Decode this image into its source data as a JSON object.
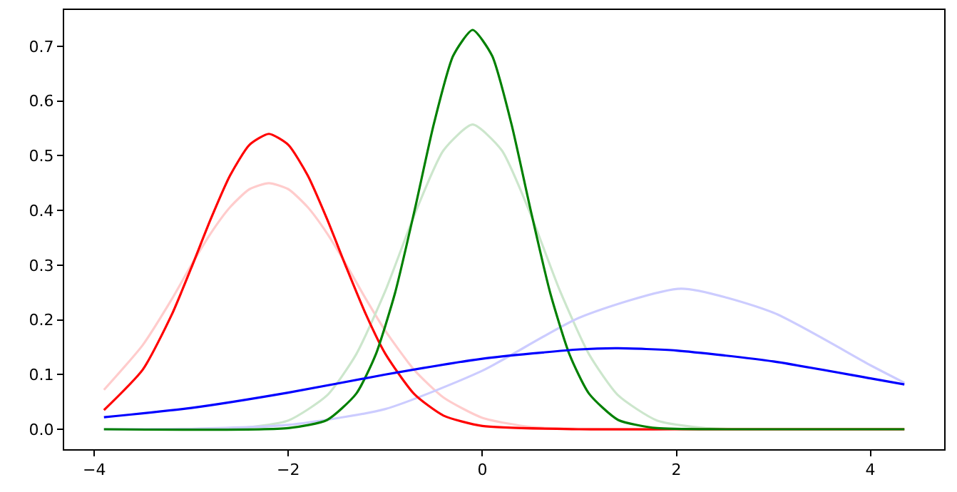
{
  "chart_data": {
    "type": "line",
    "xlim": [
      -4.31,
      4.76
    ],
    "ylim": [
      -0.0365,
      0.7665
    ],
    "xticks": [
      {
        "value": -4,
        "label": "−4"
      },
      {
        "value": -2,
        "label": "−2"
      },
      0,
      2,
      4
    ],
    "yticks": [
      {
        "value": 0,
        "label": "0.0"
      },
      {
        "value": 0.1,
        "label": "0.1"
      },
      {
        "value": 0.2,
        "label": "0.2"
      },
      {
        "value": 0.3,
        "label": "0.3"
      },
      {
        "value": 0.4,
        "label": "0.4"
      },
      {
        "value": 0.5,
        "label": "0.5"
      },
      {
        "value": 0.6,
        "label": "0.6"
      },
      {
        "value": 0.7,
        "label": "0.7"
      }
    ],
    "marker": "none",
    "line_style": "solid",
    "series": [
      {
        "color": "#ffcccc",
        "x": [
          -3.9,
          -3.5,
          -3.2,
          -3.0,
          -2.8,
          -2.6,
          -2.4,
          -2.2,
          -2.0,
          -1.8,
          -1.6,
          -1.4,
          -1.2,
          -1.0,
          -0.7,
          -0.4,
          0,
          0.5,
          1,
          2,
          3,
          4.35
        ],
        "values": [
          0.072,
          0.154,
          0.238,
          0.3,
          0.358,
          0.406,
          0.439,
          0.45,
          0.439,
          0.406,
          0.358,
          0.3,
          0.238,
          0.18,
          0.108,
          0.058,
          0.021,
          0.004,
          0.001,
          0,
          0,
          0
        ]
      },
      {
        "color": "#cce6cc",
        "x": [
          -3.9,
          -2.5,
          -2,
          -1.6,
          -1.3,
          -1.0,
          -0.7,
          -0.4,
          -0.1,
          0.2,
          0.5,
          0.8,
          1.1,
          1.4,
          1.8,
          2.3,
          3,
          4.35
        ],
        "values": [
          0,
          0.002,
          0.016,
          0.062,
          0.137,
          0.253,
          0.392,
          0.51,
          0.557,
          0.51,
          0.392,
          0.253,
          0.137,
          0.062,
          0.016,
          0.002,
          0,
          0
        ]
      },
      {
        "color": "#ccccff",
        "x": [
          -3.9,
          -3,
          -2,
          -1,
          0,
          1,
          2.05,
          3,
          4,
          4.35
        ],
        "values": [
          0,
          0.001,
          0.008,
          0.037,
          0.107,
          0.204,
          0.257,
          0.213,
          0.117,
          0.085
        ]
      },
      {
        "color": "#ff0000",
        "x": [
          -3.9,
          -3.5,
          -3.2,
          -3.0,
          -2.8,
          -2.6,
          -2.4,
          -2.2,
          -2.0,
          -1.8,
          -1.6,
          -1.4,
          -1.2,
          -1.0,
          -0.7,
          -0.4,
          0,
          1,
          2,
          3,
          4.35
        ],
        "values": [
          0.035,
          0.109,
          0.21,
          0.295,
          0.384,
          0.464,
          0.52,
          0.54,
          0.52,
          0.464,
          0.384,
          0.295,
          0.21,
          0.138,
          0.064,
          0.025,
          0.006,
          0,
          0,
          0,
          0
        ]
      },
      {
        "color": "#008000",
        "x": [
          -3.9,
          -2,
          -1.6,
          -1.3,
          -1.1,
          -0.9,
          -0.7,
          -0.5,
          -0.3,
          -0.1,
          0.1,
          0.3,
          0.5,
          0.7,
          0.9,
          1.1,
          1.4,
          1.8,
          2.5,
          4.35
        ],
        "values": [
          0,
          0.002,
          0.017,
          0.065,
          0.136,
          0.249,
          0.399,
          0.558,
          0.683,
          0.73,
          0.683,
          0.558,
          0.399,
          0.249,
          0.136,
          0.065,
          0.017,
          0.002,
          0,
          0
        ]
      },
      {
        "color": "#0000ff",
        "x": [
          -3.9,
          -3,
          -2,
          -1,
          0,
          1,
          1.4,
          2,
          3,
          4,
          4.35
        ],
        "values": [
          0.022,
          0.039,
          0.067,
          0.1,
          0.129,
          0.146,
          0.148,
          0.144,
          0.124,
          0.093,
          0.082
        ]
      }
    ]
  }
}
